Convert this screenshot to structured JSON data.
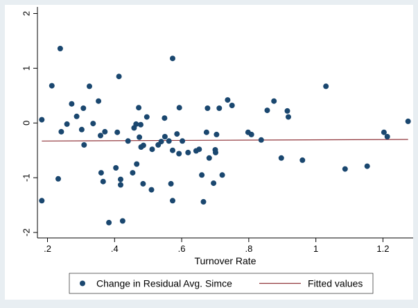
{
  "chart_data": {
    "type": "scatter",
    "title": "",
    "xlabel": "Turnover Rate",
    "ylabel": "",
    "xlim": [
      0.17,
      1.29
    ],
    "ylim": [
      -2.1,
      2.12
    ],
    "x_ticks": [
      0.2,
      0.4,
      0.6,
      0.8,
      1.0,
      1.2
    ],
    "x_tick_labels": [
      ".2",
      ".4",
      ".6",
      ".8",
      "1",
      "1.2"
    ],
    "y_ticks": [
      -2,
      -1,
      0,
      1,
      2
    ],
    "y_tick_labels": [
      "-2",
      "-1",
      "0",
      "1",
      "2"
    ],
    "grid": false,
    "legend_position": "bottom",
    "series": [
      {
        "name": "Change in Residual Avg. Simce",
        "kind": "scatter",
        "color": "#1a476f",
        "points": [
          [
            0.183,
            0.06
          ],
          [
            0.183,
            -1.42
          ],
          [
            0.213,
            0.68
          ],
          [
            0.232,
            -1.02
          ],
          [
            0.238,
            1.36
          ],
          [
            0.241,
            -0.16
          ],
          [
            0.258,
            -0.02
          ],
          [
            0.272,
            0.35
          ],
          [
            0.287,
            0.12
          ],
          [
            0.302,
            -0.12
          ],
          [
            0.307,
            0.27
          ],
          [
            0.309,
            -0.4
          ],
          [
            0.325,
            0.67
          ],
          [
            0.336,
            -0.01
          ],
          [
            0.352,
            0.4
          ],
          [
            0.358,
            -0.23
          ],
          [
            0.36,
            -0.91
          ],
          [
            0.366,
            -1.07
          ],
          [
            0.371,
            -0.16
          ],
          [
            0.383,
            -1.82
          ],
          [
            0.404,
            -0.82
          ],
          [
            0.408,
            -0.17
          ],
          [
            0.413,
            0.85
          ],
          [
            0.418,
            -1.03
          ],
          [
            0.418,
            -1.13
          ],
          [
            0.424,
            -1.79
          ],
          [
            0.44,
            -0.33
          ],
          [
            0.454,
            -0.91
          ],
          [
            0.458,
            -0.09
          ],
          [
            0.464,
            -0.02
          ],
          [
            0.466,
            -0.75
          ],
          [
            0.472,
            0.28
          ],
          [
            0.474,
            -0.26
          ],
          [
            0.478,
            -0.03
          ],
          [
            0.479,
            -0.44
          ],
          [
            0.485,
            -1.11
          ],
          [
            0.486,
            -0.41
          ],
          [
            0.496,
            0.11
          ],
          [
            0.51,
            -1.22
          ],
          [
            0.512,
            -0.48
          ],
          [
            0.53,
            -0.4
          ],
          [
            0.539,
            -0.34
          ],
          [
            0.549,
            0.09
          ],
          [
            0.55,
            -0.25
          ],
          [
            0.562,
            -0.33
          ],
          [
            0.568,
            -1.11
          ],
          [
            0.573,
            1.18
          ],
          [
            0.573,
            -1.42
          ],
          [
            0.573,
            -0.5
          ],
          [
            0.586,
            -0.2
          ],
          [
            0.592,
            -0.56
          ],
          [
            0.593,
            0.28
          ],
          [
            0.602,
            -0.33
          ],
          [
            0.619,
            -0.54
          ],
          [
            0.643,
            -0.51
          ],
          [
            0.652,
            -0.48
          ],
          [
            0.66,
            -0.95
          ],
          [
            0.665,
            -1.44
          ],
          [
            0.674,
            -0.17
          ],
          [
            0.677,
            0.27
          ],
          [
            0.682,
            -0.64
          ],
          [
            0.695,
            -1.1
          ],
          [
            0.7,
            -0.49
          ],
          [
            0.701,
            -0.54
          ],
          [
            0.704,
            -0.21
          ],
          [
            0.712,
            0.27
          ],
          [
            0.721,
            -0.95
          ],
          [
            0.737,
            0.42
          ],
          [
            0.75,
            0.32
          ],
          [
            0.798,
            -0.17
          ],
          [
            0.808,
            -0.21
          ],
          [
            0.837,
            -0.31
          ],
          [
            0.855,
            0.23
          ],
          [
            0.875,
            0.4
          ],
          [
            0.897,
            -0.64
          ],
          [
            0.915,
            0.22
          ],
          [
            0.918,
            0.11
          ],
          [
            0.96,
            -0.68
          ],
          [
            1.03,
            0.67
          ],
          [
            1.087,
            -0.84
          ],
          [
            1.153,
            -0.79
          ],
          [
            1.203,
            -0.17
          ],
          [
            1.213,
            -0.25
          ],
          [
            1.275,
            0.03
          ]
        ]
      },
      {
        "name": "Fitted values",
        "kind": "line",
        "color": "#90353b",
        "points": [
          [
            0.183,
            -0.33
          ],
          [
            1.275,
            -0.3
          ]
        ]
      }
    ]
  }
}
